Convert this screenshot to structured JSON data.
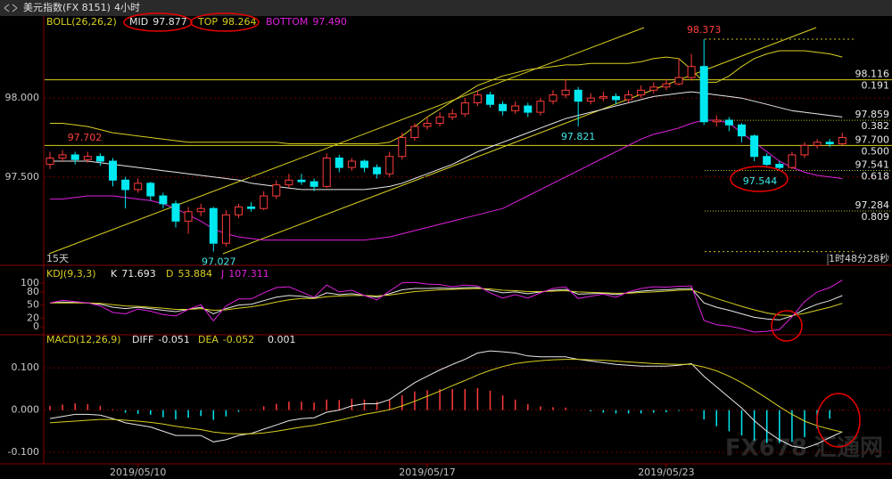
{
  "header": {
    "symbol": "美元指数(FX 8151)",
    "period": "4小时"
  },
  "watermark": {
    "brand": "FX678",
    "name": "汇通网"
  },
  "chart_data": [
    {
      "type": "candlestick",
      "title": "BOLL(26,26,2)",
      "categories": [
        null,
        null,
        null,
        null,
        null,
        null,
        null,
        "2019/05/10",
        null,
        null,
        null,
        null,
        null,
        null,
        null,
        null,
        null,
        null,
        null,
        null,
        null,
        null,
        null,
        null,
        null,
        null,
        null,
        null,
        null,
        null,
        "2019/05/17",
        null,
        null,
        null,
        null,
        null,
        null,
        null,
        null,
        null,
        null,
        null,
        null,
        null,
        null,
        null,
        null,
        null,
        null,
        "2019/05/23",
        null,
        null,
        null,
        null,
        null,
        null,
        null,
        null,
        null,
        null,
        null,
        null,
        null,
        null
      ],
      "up_color": "#ff3b3b",
      "down_color": "#00e8f0",
      "ohlc": [
        [
          97.58,
          97.66,
          97.55,
          97.62
        ],
        [
          97.62,
          97.67,
          97.6,
          97.64
        ],
        [
          97.64,
          97.66,
          97.58,
          97.61
        ],
        [
          97.61,
          97.66,
          97.59,
          97.63
        ],
        [
          97.63,
          97.65,
          97.57,
          97.6
        ],
        [
          97.6,
          97.62,
          97.44,
          97.48
        ],
        [
          97.48,
          97.5,
          97.3,
          97.42
        ],
        [
          97.42,
          97.49,
          97.4,
          97.46
        ],
        [
          97.46,
          97.47,
          97.35,
          97.38
        ],
        [
          97.38,
          97.4,
          97.3,
          97.33
        ],
        [
          97.33,
          97.35,
          97.18,
          97.22
        ],
        [
          97.22,
          97.31,
          97.14,
          97.28
        ],
        [
          97.28,
          97.33,
          97.25,
          97.3
        ],
        [
          97.3,
          97.31,
          97.027,
          97.08
        ],
        [
          97.08,
          97.29,
          97.06,
          97.26
        ],
        [
          97.26,
          97.33,
          97.24,
          97.31
        ],
        [
          97.31,
          97.34,
          97.28,
          97.3
        ],
        [
          97.3,
          97.41,
          97.29,
          97.38
        ],
        [
          97.38,
          97.48,
          97.36,
          97.45
        ],
        [
          97.45,
          97.52,
          97.43,
          97.48
        ],
        [
          97.48,
          97.52,
          97.45,
          97.47
        ],
        [
          97.47,
          97.49,
          97.41,
          97.44
        ],
        [
          97.44,
          97.65,
          97.43,
          97.62
        ],
        [
          97.62,
          97.64,
          97.53,
          97.56
        ],
        [
          97.56,
          97.62,
          97.54,
          97.6
        ],
        [
          97.6,
          97.61,
          97.53,
          97.56
        ],
        [
          97.56,
          97.58,
          97.49,
          97.52
        ],
        [
          97.52,
          97.66,
          97.5,
          97.63
        ],
        [
          97.63,
          97.78,
          97.61,
          97.75
        ],
        [
          97.75,
          97.84,
          97.73,
          97.82
        ],
        [
          97.82,
          97.88,
          97.8,
          97.84
        ],
        [
          97.84,
          97.91,
          97.82,
          97.88
        ],
        [
          97.88,
          97.93,
          97.86,
          97.9
        ],
        [
          97.9,
          98.0,
          97.88,
          97.97
        ],
        [
          97.97,
          98.05,
          97.95,
          98.02
        ],
        [
          98.02,
          98.04,
          97.94,
          97.96
        ],
        [
          97.96,
          97.98,
          97.89,
          97.92
        ],
        [
          97.92,
          97.98,
          97.9,
          97.95
        ],
        [
          97.95,
          97.97,
          97.88,
          97.91
        ],
        [
          97.91,
          98.0,
          97.89,
          97.98
        ],
        [
          97.98,
          98.05,
          97.96,
          98.02
        ],
        [
          98.02,
          98.12,
          98.0,
          98.05
        ],
        [
          98.05,
          98.07,
          97.821,
          97.98
        ],
        [
          97.98,
          98.03,
          97.96,
          98.0
        ],
        [
          98.0,
          98.04,
          97.98,
          98.01
        ],
        [
          98.01,
          98.03,
          97.96,
          97.99
        ],
        [
          97.99,
          98.05,
          97.97,
          98.02
        ],
        [
          98.02,
          98.08,
          98.0,
          98.05
        ],
        [
          98.05,
          98.1,
          98.03,
          98.07
        ],
        [
          98.07,
          98.12,
          98.05,
          98.09
        ],
        [
          98.09,
          98.25,
          98.08,
          98.13
        ],
        [
          98.13,
          98.28,
          98.11,
          98.2
        ],
        [
          98.2,
          98.373,
          97.83,
          97.85
        ],
        [
          97.85,
          97.89,
          97.82,
          97.86
        ],
        [
          97.86,
          97.88,
          97.79,
          97.83
        ],
        [
          97.83,
          97.84,
          97.72,
          97.76
        ],
        [
          97.76,
          97.77,
          97.6,
          97.63
        ],
        [
          97.63,
          97.65,
          97.57,
          97.58
        ],
        [
          97.58,
          97.6,
          97.544,
          97.56
        ],
        [
          97.56,
          97.66,
          97.55,
          97.64
        ],
        [
          97.64,
          97.72,
          97.62,
          97.7
        ],
        [
          97.7,
          97.74,
          97.68,
          97.72
        ],
        [
          97.72,
          97.74,
          97.69,
          97.71
        ],
        [
          97.71,
          97.78,
          97.7,
          97.75
        ]
      ],
      "series": [
        {
          "name": "MID",
          "color": "#e8e8e8",
          "last_label": "97.877",
          "values": [
            97.6,
            97.6,
            97.6,
            97.6,
            97.59,
            97.58,
            97.57,
            97.56,
            97.55,
            97.54,
            97.53,
            97.52,
            97.51,
            97.5,
            97.49,
            97.48,
            97.46,
            97.45,
            97.44,
            97.43,
            97.42,
            97.42,
            97.42,
            97.42,
            97.42,
            97.42,
            97.43,
            97.44,
            97.46,
            97.49,
            97.52,
            97.55,
            97.58,
            97.62,
            97.66,
            97.69,
            97.72,
            97.75,
            97.78,
            97.81,
            97.84,
            97.87,
            97.89,
            97.91,
            97.93,
            97.95,
            97.97,
            97.99,
            98.01,
            98.02,
            98.03,
            98.04,
            98.03,
            98.02,
            98.01,
            98.0,
            97.98,
            97.96,
            97.94,
            97.92,
            97.91,
            97.9,
            97.89,
            97.88
          ]
        },
        {
          "name": "TOP",
          "color": "#d8d020",
          "last_label": "98.264",
          "values": [
            97.84,
            97.84,
            97.83,
            97.82,
            97.8,
            97.78,
            97.77,
            97.76,
            97.75,
            97.74,
            97.73,
            97.72,
            97.72,
            97.72,
            97.72,
            97.72,
            97.72,
            97.72,
            97.72,
            97.71,
            97.71,
            97.71,
            97.71,
            97.71,
            97.71,
            97.71,
            97.71,
            97.72,
            97.76,
            97.82,
            97.88,
            97.93,
            97.98,
            98.03,
            98.08,
            98.11,
            98.14,
            98.16,
            98.18,
            98.19,
            98.2,
            98.21,
            98.21,
            98.22,
            98.22,
            98.22,
            98.22,
            98.23,
            98.25,
            98.26,
            98.25,
            98.18,
            98.1,
            98.1,
            98.14,
            98.2,
            98.25,
            98.28,
            98.3,
            98.3,
            98.3,
            98.29,
            98.28,
            98.26
          ]
        },
        {
          "name": "BOTTOM",
          "color": "#e020e0",
          "last_label": "97.490",
          "values": [
            97.36,
            97.36,
            97.37,
            97.38,
            97.38,
            97.38,
            97.37,
            97.36,
            97.35,
            97.33,
            97.3,
            97.26,
            97.22,
            97.17,
            97.14,
            97.12,
            97.11,
            97.1,
            97.1,
            97.1,
            97.1,
            97.1,
            97.1,
            97.1,
            97.1,
            97.1,
            97.11,
            97.12,
            97.14,
            97.16,
            97.18,
            97.2,
            97.22,
            97.24,
            97.26,
            97.28,
            97.3,
            97.34,
            97.38,
            97.42,
            97.46,
            97.5,
            97.54,
            97.58,
            97.62,
            97.66,
            97.7,
            97.74,
            97.77,
            97.79,
            97.81,
            97.84,
            97.86,
            97.86,
            97.84,
            97.78,
            97.72,
            97.66,
            97.6,
            97.56,
            97.53,
            97.51,
            97.5,
            97.49
          ]
        }
      ],
      "levels": [
        {
          "value": 98.116,
          "ratio": "0.191"
        },
        {
          "value": 97.859,
          "ratio": "0.382"
        },
        {
          "value": 97.7,
          "label": "97.700",
          "ratio": "0.500"
        },
        {
          "value": 97.541,
          "ratio": "0.618"
        },
        {
          "value": 97.284,
          "ratio": "0.809"
        }
      ],
      "price_labels": [
        98.373,
        97.821,
        97.702,
        97.544,
        97.027
      ],
      "period_note": "15天",
      "countdown": "1时48分28秒",
      "ylim": [
        96.94,
        98.52
      ],
      "yticks": [
        {
          "value": 97.5,
          "label": "97.500"
        },
        {
          "value": 98,
          "label": "98.000"
        }
      ],
      "grid": true
    },
    {
      "type": "line",
      "title": "KDJ(9,3,3)",
      "series": [
        {
          "name": "K",
          "color": "#e8e8e8",
          "last_label": "71.693",
          "values": [
            55,
            57,
            56,
            55,
            52,
            45,
            42,
            45,
            42,
            38,
            35,
            40,
            45,
            30,
            42,
            50,
            52,
            60,
            68,
            72,
            70,
            66,
            78,
            74,
            76,
            72,
            68,
            76,
            85,
            88,
            88,
            89,
            88,
            90,
            90,
            84,
            78,
            80,
            76,
            80,
            84,
            86,
            75,
            76,
            77,
            74,
            78,
            82,
            84,
            85,
            87,
            88,
            55,
            45,
            38,
            30,
            22,
            18,
            16,
            25,
            40,
            52,
            60,
            71.693
          ]
        },
        {
          "name": "D",
          "color": "#d8d020",
          "last_label": "53.884",
          "values": [
            55,
            55,
            55,
            55,
            54,
            51,
            48,
            47,
            45,
            43,
            40,
            40,
            42,
            38,
            39,
            43,
            46,
            51,
            57,
            62,
            65,
            65,
            69,
            71,
            72,
            72,
            71,
            73,
            77,
            81,
            83,
            85,
            86,
            87,
            88,
            87,
            84,
            83,
            81,
            81,
            82,
            83,
            80,
            79,
            78,
            77,
            77,
            79,
            80,
            82,
            84,
            85,
            75,
            65,
            56,
            47,
            39,
            32,
            27,
            26,
            31,
            38,
            45,
            53.884
          ]
        },
        {
          "name": "J",
          "color": "#e020e0",
          "last_label": "107.311",
          "values": [
            55,
            61,
            58,
            55,
            48,
            33,
            30,
            41,
            36,
            28,
            25,
            40,
            51,
            14,
            48,
            64,
            64,
            78,
            90,
            92,
            80,
            68,
            96,
            80,
            84,
            72,
            62,
            82,
            101,
            102,
            98,
            97,
            92,
            96,
            94,
            78,
            66,
            74,
            66,
            78,
            88,
            92,
            65,
            70,
            75,
            68,
            80,
            88,
            92,
            91,
            93,
            94,
            15,
            5,
            2,
            -4,
            -12,
            -10,
            -6,
            23,
            58,
            80,
            90,
            107.311
          ]
        }
      ],
      "ylim": [
        -16,
        137
      ],
      "yticks": [
        0,
        20,
        50,
        80,
        100
      ],
      "grid": false
    },
    {
      "type": "macd",
      "title": "MACD(12,26,9)",
      "series": [
        {
          "name": "DIFF",
          "color": "#e8e8e8",
          "last_label": "-0.051",
          "values": [
            -0.02,
            -0.015,
            -0.01,
            -0.01,
            -0.012,
            -0.02,
            -0.03,
            -0.035,
            -0.04,
            -0.05,
            -0.06,
            -0.06,
            -0.06,
            -0.075,
            -0.07,
            -0.06,
            -0.055,
            -0.045,
            -0.035,
            -0.025,
            -0.02,
            -0.018,
            -0.005,
            0,
            0.01,
            0.015,
            0.015,
            0.025,
            0.045,
            0.065,
            0.08,
            0.095,
            0.108,
            0.12,
            0.135,
            0.14,
            0.138,
            0.135,
            0.128,
            0.126,
            0.126,
            0.126,
            0.12,
            0.116,
            0.112,
            0.108,
            0.106,
            0.104,
            0.104,
            0.104,
            0.106,
            0.11,
            0.08,
            0.055,
            0.03,
            0.005,
            -0.025,
            -0.05,
            -0.07,
            -0.085,
            -0.09,
            -0.08,
            -0.065,
            -0.051
          ]
        },
        {
          "name": "DEA",
          "color": "#d8d020",
          "last_label": "-0.052",
          "values": [
            -0.03,
            -0.028,
            -0.026,
            -0.024,
            -0.022,
            -0.022,
            -0.024,
            -0.026,
            -0.029,
            -0.033,
            -0.038,
            -0.042,
            -0.046,
            -0.052,
            -0.055,
            -0.056,
            -0.056,
            -0.054,
            -0.05,
            -0.045,
            -0.04,
            -0.036,
            -0.03,
            -0.024,
            -0.017,
            -0.01,
            -0.005,
            0.001,
            0.01,
            0.021,
            0.033,
            0.045,
            0.058,
            0.07,
            0.083,
            0.094,
            0.103,
            0.11,
            0.114,
            0.117,
            0.119,
            0.12,
            0.12,
            0.119,
            0.118,
            0.116,
            0.114,
            0.112,
            0.11,
            0.109,
            0.108,
            0.108,
            0.102,
            0.093,
            0.08,
            0.065,
            0.047,
            0.028,
            0.008,
            -0.01,
            -0.026,
            -0.037,
            -0.045,
            -0.052
          ]
        }
      ],
      "histogram": {
        "up_color": "#ff3b3b",
        "down_color": "#00e8f0",
        "last_label": "0.001",
        "values": [
          0.01,
          0.013,
          0.016,
          0.014,
          0.01,
          0.002,
          -0.006,
          -0.009,
          -0.011,
          -0.017,
          -0.022,
          -0.018,
          -0.014,
          -0.023,
          -0.015,
          -0.004,
          0.001,
          0.009,
          0.015,
          0.02,
          0.02,
          0.018,
          0.025,
          0.024,
          0.027,
          0.025,
          0.02,
          0.024,
          0.035,
          0.044,
          0.047,
          0.05,
          0.05,
          0.05,
          0.052,
          0.046,
          0.035,
          0.025,
          0.014,
          0.009,
          0.007,
          0.006,
          0,
          -0.003,
          -0.006,
          -0.008,
          -0.008,
          -0.008,
          -0.006,
          -0.005,
          -0.002,
          0.002,
          -0.022,
          -0.038,
          -0.05,
          -0.06,
          -0.072,
          -0.078,
          -0.078,
          -0.075,
          -0.064,
          -0.043,
          -0.02,
          0.001
        ]
      },
      "ylim": [
        -0.125,
        0.174
      ],
      "yticks": [
        {
          "value": 0.1,
          "label": "0.100"
        },
        {
          "value": 0,
          "label": "0.000"
        },
        {
          "value": -0.1,
          "label": "-0.100"
        }
      ],
      "grid": true
    }
  ]
}
